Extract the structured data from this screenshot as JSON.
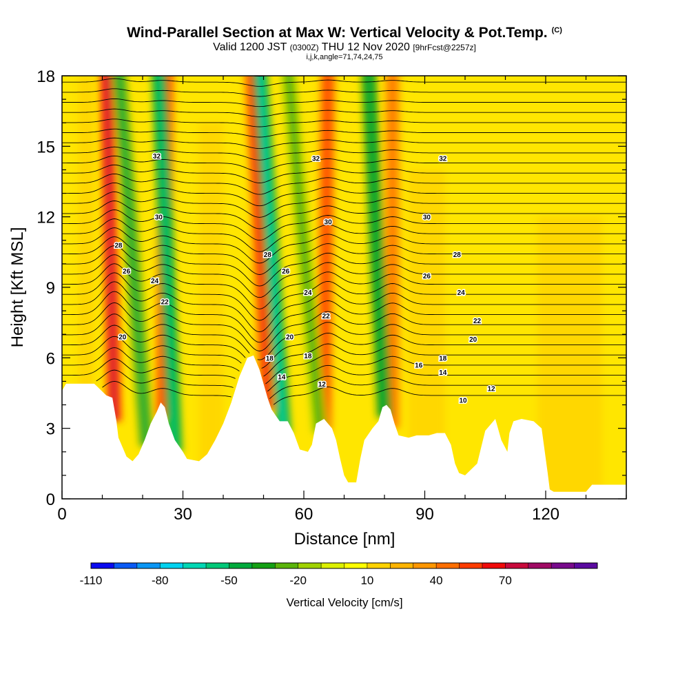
{
  "header": {
    "title": "Wind-Parallel Section at Max W: Vertical Velocity & Pot.Temp.",
    "copyright": "(C)",
    "valid_main": "Valid 1200 JST",
    "valid_utc": "(0300Z)",
    "valid_date": "THU 12 Nov 2020",
    "forecast": "[9hrFcst@2257z]",
    "indices": "i,j,k,angle=71,74,24,75"
  },
  "chart_data": {
    "type": "heatmap",
    "xlabel": "Distance [nm]",
    "ylabel": "Height [Kft MSL]",
    "xlim": [
      0,
      140
    ],
    "ylim": [
      0,
      18
    ],
    "x_ticks": [
      0,
      30,
      60,
      90,
      120
    ],
    "y_ticks": [
      0,
      3,
      6,
      9,
      12,
      15,
      18
    ],
    "colorbar": {
      "label": "Vertical Velocity [cm/s]",
      "tick_labels": [
        "-110",
        "-80",
        "-50",
        "-20",
        "10",
        "40",
        "70"
      ],
      "tick_values": [
        -110,
        -80,
        -50,
        -20,
        10,
        40,
        70
      ],
      "min": -110,
      "step": 10,
      "colors": [
        "#0a0af0",
        "#0a5af5",
        "#0a96f5",
        "#00d2f0",
        "#00d7b4",
        "#00c878",
        "#00aa3c",
        "#14a014",
        "#5ab40a",
        "#a0d200",
        "#dcf000",
        "#ffff00",
        "#ffd200",
        "#ffb400",
        "#ff9600",
        "#ff6e00",
        "#ff3c00",
        "#f00a0a",
        "#c80a3c",
        "#a00a64",
        "#780a8c",
        "#5a0aa0"
      ]
    },
    "terrain": [
      [
        0,
        4.6
      ],
      [
        1,
        4.9
      ],
      [
        4,
        4.9
      ],
      [
        8,
        4.9
      ],
      [
        11,
        4.4
      ],
      [
        12.5,
        4.3
      ],
      [
        13,
        3.8
      ],
      [
        13.5,
        3.3
      ],
      [
        14,
        2.6
      ],
      [
        15,
        2.2
      ],
      [
        16,
        1.8
      ],
      [
        17.5,
        1.6
      ],
      [
        19,
        1.9
      ],
      [
        20.5,
        2.5
      ],
      [
        22,
        3.2
      ],
      [
        23.5,
        3.7
      ],
      [
        24.5,
        4.1
      ],
      [
        25.5,
        3.9
      ],
      [
        26.5,
        3.2
      ],
      [
        28,
        2.5
      ],
      [
        30,
        2.0
      ],
      [
        31,
        1.7
      ],
      [
        34,
        1.6
      ],
      [
        36,
        1.9
      ],
      [
        38,
        2.5
      ],
      [
        40,
        3.2
      ],
      [
        42,
        4.1
      ],
      [
        44,
        5.2
      ],
      [
        46,
        6.0
      ],
      [
        47.5,
        6.1
      ],
      [
        49,
        5.5
      ],
      [
        50,
        4.9
      ],
      [
        51,
        4.3
      ],
      [
        52,
        3.8
      ],
      [
        54,
        3.3
      ],
      [
        56,
        3.3
      ],
      [
        57.5,
        2.8
      ],
      [
        59,
        2.1
      ],
      [
        61,
        2.0
      ],
      [
        62,
        2.3
      ],
      [
        63,
        3.2
      ],
      [
        65,
        3.4
      ],
      [
        67,
        3.0
      ],
      [
        68,
        2.5
      ],
      [
        69,
        1.7
      ],
      [
        70,
        1.0
      ],
      [
        71,
        0.7
      ],
      [
        73,
        0.7
      ],
      [
        74,
        1.7
      ],
      [
        75,
        2.5
      ],
      [
        77,
        3.0
      ],
      [
        78.5,
        3.3
      ],
      [
        79.5,
        3.9
      ],
      [
        80.5,
        4.0
      ],
      [
        81.5,
        3.8
      ],
      [
        82.5,
        3.2
      ],
      [
        83.5,
        2.7
      ],
      [
        86,
        2.6
      ],
      [
        88,
        2.7
      ],
      [
        91,
        2.7
      ],
      [
        93,
        2.8
      ],
      [
        95,
        2.8
      ],
      [
        96.5,
        2.3
      ],
      [
        97.5,
        1.5
      ],
      [
        98.5,
        1.1
      ],
      [
        100,
        1.0
      ],
      [
        103,
        1.5
      ],
      [
        104,
        2.2
      ],
      [
        105,
        2.9
      ],
      [
        107.5,
        3.4
      ],
      [
        109,
        2.5
      ],
      [
        110.5,
        2.0
      ],
      [
        111,
        2.8
      ],
      [
        112,
        3.3
      ],
      [
        114,
        3.4
      ],
      [
        117,
        3.3
      ],
      [
        119,
        3.0
      ],
      [
        120.5,
        1.1
      ],
      [
        121,
        0.4
      ],
      [
        122,
        0.3
      ],
      [
        130,
        0.3
      ],
      [
        131.5,
        0.6
      ],
      [
        140,
        0.6
      ]
    ],
    "updraft_streaks": [
      {
        "x_top": 11,
        "x_bottom": 13,
        "w": 55
      },
      {
        "x_top": 26,
        "x_bottom": 25,
        "w": 40
      },
      {
        "x_top": 47,
        "x_bottom": 51,
        "w": 45
      },
      {
        "x_top": 66,
        "x_bottom": 65,
        "w": 40
      },
      {
        "x_top": 82,
        "x_bottom": 82,
        "w": 30
      }
    ],
    "downdraft_streaks": [
      {
        "x_top": 14,
        "x_bottom": 21,
        "w": -30
      },
      {
        "x_top": 24,
        "x_bottom": 28,
        "w": -45
      },
      {
        "x_top": 49,
        "x_bottom": 55,
        "w": -50
      },
      {
        "x_top": 56,
        "x_bottom": 64,
        "w": -20
      },
      {
        "x_top": 76,
        "x_bottom": 80,
        "w": -35
      }
    ],
    "contour_labels": [
      {
        "text": "32",
        "x": 23.5,
        "y": 14.6
      },
      {
        "text": "32",
        "x": 63,
        "y": 14.5
      },
      {
        "text": "32",
        "x": 94.5,
        "y": 14.5
      },
      {
        "text": "30",
        "x": 24,
        "y": 12.0
      },
      {
        "text": "30",
        "x": 66,
        "y": 11.8
      },
      {
        "text": "30",
        "x": 90.5,
        "y": 12.0
      },
      {
        "text": "28",
        "x": 14,
        "y": 10.8
      },
      {
        "text": "28",
        "x": 51,
        "y": 10.4
      },
      {
        "text": "28",
        "x": 98,
        "y": 10.4
      },
      {
        "text": "26",
        "x": 16,
        "y": 9.7
      },
      {
        "text": "26",
        "x": 55.5,
        "y": 9.7
      },
      {
        "text": "26",
        "x": 90.5,
        "y": 9.5
      },
      {
        "text": "24",
        "x": 23,
        "y": 9.3
      },
      {
        "text": "24",
        "x": 61,
        "y": 8.8
      },
      {
        "text": "24",
        "x": 99,
        "y": 8.8
      },
      {
        "text": "22",
        "x": 25.5,
        "y": 8.4
      },
      {
        "text": "22",
        "x": 65.5,
        "y": 7.8
      },
      {
        "text": "22",
        "x": 103,
        "y": 7.6
      },
      {
        "text": "20",
        "x": 15,
        "y": 6.9
      },
      {
        "text": "20",
        "x": 56.5,
        "y": 6.9
      },
      {
        "text": "20",
        "x": 102,
        "y": 6.8
      },
      {
        "text": "18",
        "x": 51.5,
        "y": 6.0
      },
      {
        "text": "18",
        "x": 61,
        "y": 6.1
      },
      {
        "text": "18",
        "x": 94.5,
        "y": 6.0
      },
      {
        "text": "16",
        "x": 88.5,
        "y": 5.7
      },
      {
        "text": "14",
        "x": 54.5,
        "y": 5.2
      },
      {
        "text": "14",
        "x": 94.5,
        "y": 5.4
      },
      {
        "text": "12",
        "x": 64.5,
        "y": 4.9
      },
      {
        "text": "12",
        "x": 106.5,
        "y": 4.7
      },
      {
        "text": "10",
        "x": 99.5,
        "y": 4.2
      }
    ]
  }
}
